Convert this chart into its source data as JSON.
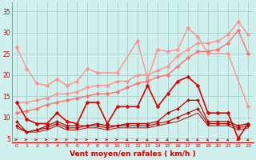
{
  "bg_color": "#cff0ec",
  "grid_color": "#aad4ce",
  "xlabel": "Vent moyen/en rafales ( km/h )",
  "xlim": [
    -0.5,
    23.5
  ],
  "ylim": [
    4,
    37
  ],
  "yticks": [
    5,
    10,
    15,
    20,
    25,
    30,
    35
  ],
  "xticks": [
    0,
    1,
    2,
    3,
    4,
    5,
    6,
    7,
    8,
    9,
    10,
    11,
    12,
    13,
    14,
    15,
    16,
    17,
    18,
    19,
    20,
    21,
    22,
    23
  ],
  "series": [
    {
      "x": [
        0,
        1,
        2,
        3,
        4,
        5,
        6,
        7,
        8,
        10,
        12,
        13,
        14,
        15,
        16,
        17,
        18,
        19,
        21,
        23
      ],
      "y": [
        26.5,
        21.5,
        18.0,
        17.5,
        19.0,
        17.5,
        18.5,
        21.5,
        20.5,
        20.5,
        28.0,
        19.0,
        26.0,
        25.5,
        26.0,
        31.0,
        29.0,
        25.0,
        25.0,
        12.5
      ],
      "color": "#ff9090",
      "marker": "D",
      "markersize": 2.5,
      "linewidth": 1.0,
      "linestyle": "-"
    },
    {
      "x": [
        0,
        1,
        2,
        3,
        4,
        5,
        6,
        7,
        8,
        9,
        10,
        11,
        12,
        13,
        14,
        15,
        16,
        17,
        18,
        19,
        20,
        21,
        22,
        23
      ],
      "y": [
        13.5,
        13.5,
        14.0,
        14.5,
        15.5,
        15.5,
        16.0,
        17.0,
        17.5,
        17.5,
        18.5,
        18.5,
        20.0,
        20.0,
        21.0,
        22.0,
        24.5,
        26.0,
        27.5,
        27.5,
        28.0,
        29.5,
        32.5,
        29.5
      ],
      "color": "#ff9090",
      "marker": "D",
      "markersize": 2.5,
      "linewidth": 1.0,
      "linestyle": "-"
    },
    {
      "x": [
        0,
        1,
        2,
        3,
        4,
        5,
        6,
        7,
        8,
        9,
        10,
        11,
        12,
        13,
        14,
        15,
        16,
        17,
        18,
        19,
        20,
        21,
        22,
        23
      ],
      "y": [
        11.0,
        11.5,
        12.0,
        13.0,
        13.5,
        14.0,
        14.5,
        15.0,
        15.5,
        15.5,
        16.0,
        17.0,
        18.0,
        18.5,
        19.5,
        20.0,
        22.0,
        24.0,
        25.5,
        25.5,
        26.0,
        27.5,
        30.5,
        25.0
      ],
      "color": "#ff7070",
      "marker": "D",
      "markersize": 2.5,
      "linewidth": 1.0,
      "linestyle": "-"
    },
    {
      "x": [
        0,
        1,
        2,
        3,
        4,
        5,
        6,
        7,
        8,
        9,
        10,
        11,
        12,
        13,
        14,
        15,
        16,
        17,
        18,
        19,
        20,
        21,
        22,
        23
      ],
      "y": [
        13.5,
        9.5,
        8.5,
        8.5,
        11.0,
        9.0,
        8.5,
        13.5,
        13.5,
        8.5,
        12.5,
        12.5,
        12.5,
        17.5,
        12.5,
        15.5,
        18.5,
        19.5,
        17.5,
        11.0,
        11.0,
        11.0,
        5.0,
        8.5
      ],
      "color": "#dd0000",
      "marker": "D",
      "markersize": 2.5,
      "linewidth": 1.2,
      "linestyle": "-"
    },
    {
      "x": [
        0,
        1,
        2,
        3,
        4,
        5,
        6,
        7,
        8,
        9,
        10,
        11,
        12,
        13,
        14,
        15,
        16,
        17,
        18,
        19,
        20,
        21,
        22,
        23
      ],
      "y": [
        9.0,
        6.5,
        7.0,
        8.0,
        9.0,
        8.0,
        8.0,
        8.0,
        8.5,
        8.0,
        8.0,
        8.5,
        8.5,
        8.5,
        9.0,
        11.0,
        12.0,
        14.0,
        14.0,
        9.0,
        9.0,
        9.0,
        8.0,
        8.5
      ],
      "color": "#bb0000",
      "marker": "D",
      "markersize": 2.0,
      "linewidth": 0.9,
      "linestyle": "-"
    },
    {
      "x": [
        0,
        1,
        2,
        3,
        4,
        5,
        6,
        7,
        8,
        9,
        10,
        11,
        12,
        13,
        14,
        15,
        16,
        17,
        18,
        19,
        20,
        21,
        22,
        23
      ],
      "y": [
        8.0,
        6.5,
        7.0,
        7.5,
        8.5,
        7.5,
        7.5,
        8.0,
        8.0,
        7.5,
        8.0,
        8.0,
        8.0,
        8.0,
        8.5,
        9.0,
        10.0,
        11.0,
        12.0,
        8.5,
        8.5,
        8.5,
        7.5,
        8.0
      ],
      "color": "#bb0000",
      "marker": "D",
      "markersize": 2.0,
      "linewidth": 0.8,
      "linestyle": "-"
    },
    {
      "x": [
        0,
        1,
        2,
        3,
        4,
        5,
        6,
        7,
        8,
        9,
        10,
        11,
        12,
        13,
        14,
        15,
        16,
        17,
        18,
        19,
        20,
        21,
        22,
        23
      ],
      "y": [
        7.5,
        6.5,
        6.5,
        7.0,
        8.0,
        7.0,
        7.0,
        7.5,
        7.5,
        7.0,
        7.5,
        7.5,
        7.5,
        7.5,
        8.0,
        8.5,
        9.0,
        10.0,
        11.0,
        8.0,
        8.0,
        8.0,
        7.0,
        7.5
      ],
      "color": "#bb0000",
      "marker": null,
      "markersize": 1.5,
      "linewidth": 0.7,
      "linestyle": "-"
    }
  ],
  "arrows": {
    "y_data": 4.7,
    "color": "#cc0000",
    "angles_deg": [
      0,
      0,
      0,
      0,
      0,
      0,
      0,
      0,
      0,
      0,
      0,
      225,
      225,
      225,
      225,
      225,
      225,
      225,
      225,
      225,
      225,
      225,
      225,
      225
    ]
  }
}
